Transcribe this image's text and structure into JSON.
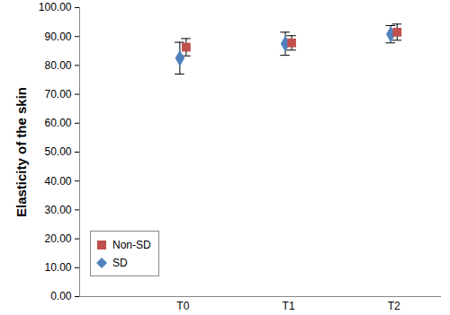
{
  "chart_data": {
    "type": "scatter",
    "y_label": "Elasticity of the skin",
    "categories": [
      "T0",
      "T1",
      "T2"
    ],
    "series": [
      {
        "name": "Non-SD",
        "color": "#c0504d",
        "marker": "square",
        "values": [
          86.3,
          87.8,
          91.5
        ],
        "errors": [
          3.0,
          2.5,
          2.8
        ]
      },
      {
        "name": "SD",
        "color": "#4f81bd",
        "marker": "diamond",
        "values": [
          82.5,
          87.5,
          90.8
        ],
        "errors": [
          5.5,
          4.0,
          3.0
        ]
      }
    ],
    "ylim": [
      0,
      100
    ],
    "yticks": [
      {
        "value": 0,
        "label": "0.00"
      },
      {
        "value": 10,
        "label": "10.00"
      },
      {
        "value": 20,
        "label": "20.00"
      },
      {
        "value": 30,
        "label": "30.00"
      },
      {
        "value": 40,
        "label": "40.00"
      },
      {
        "value": 50,
        "label": "50.00"
      },
      {
        "value": 60,
        "label": "60.00"
      },
      {
        "value": 70,
        "label": "70.00"
      },
      {
        "value": 80,
        "label": "80.00"
      },
      {
        "value": 90,
        "label": "90.00"
      },
      {
        "value": 100,
        "label": "100.00"
      }
    ],
    "legend": "bottom-left"
  }
}
